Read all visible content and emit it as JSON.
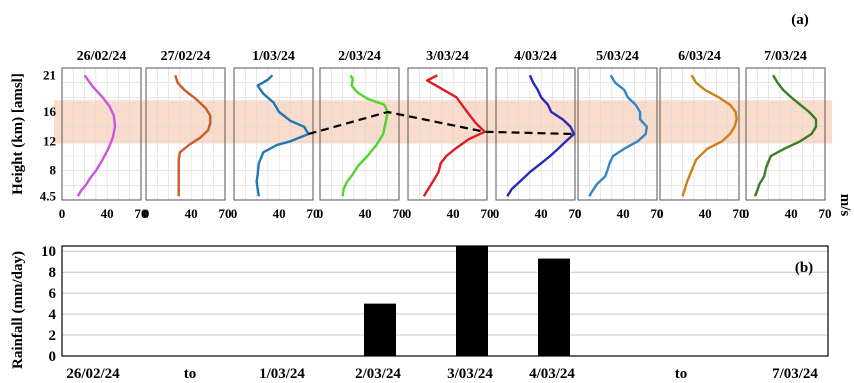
{
  "chart_data": [
    {
      "type": "line",
      "panel_label": "(a)",
      "ylabel": "Height (km) [amsl]",
      "xlabel_unit": "m/s",
      "y_ticks": [
        "4.5",
        "8",
        "12",
        "16",
        "21"
      ],
      "y_tick_values": [
        4.5,
        8,
        12,
        16,
        21
      ],
      "ylim": [
        4,
        22
      ],
      "highlight_band_km": [
        11.7,
        17.6
      ],
      "colors": {
        "highlight": "#f9dccb",
        "axis_jet": "#000000",
        "trend_line": "#000000"
      },
      "panels": [
        {
          "date": "26/02/24",
          "x_ticks": [
            "0",
            "40",
            "70"
          ],
          "x_tick_values": [
            0,
            40,
            70
          ],
          "color": "#cc55e0",
          "profile": [
            [
              14,
              4.5
            ],
            [
              17,
              5.3
            ],
            [
              21,
              6
            ],
            [
              25,
              7
            ],
            [
              30,
              8
            ],
            [
              36,
              9.5
            ],
            [
              41,
              11
            ],
            [
              45,
              12.5
            ],
            [
              47,
              14
            ],
            [
              46,
              15.5
            ],
            [
              42,
              16.8
            ],
            [
              36,
              18
            ],
            [
              27,
              19.5
            ],
            [
              20,
              21
            ]
          ]
        },
        {
          "date": "27/02/24",
          "x_ticks": [
            "0",
            "40",
            "70"
          ],
          "x_tick_values": [
            0,
            40,
            70
          ],
          "color": "#cc5d2a",
          "profile": [
            [
              29,
              4.5
            ],
            [
              29,
              6
            ],
            [
              29,
              8
            ],
            [
              29,
              9.5
            ],
            [
              30,
              10.5
            ],
            [
              38,
              11.5
            ],
            [
              48,
              12.5
            ],
            [
              55,
              13.5
            ],
            [
              57,
              14.5
            ],
            [
              57,
              15.5
            ],
            [
              53,
              16.5
            ],
            [
              44,
              17.8
            ],
            [
              34,
              19
            ],
            [
              28,
              20
            ],
            [
              26,
              21
            ]
          ]
        },
        {
          "date": "1/03/24",
          "x_ticks": [
            "0",
            "40",
            "70"
          ],
          "x_tick_values": [
            0,
            40,
            70
          ],
          "color": "#1f77b4",
          "profile": [
            [
              22,
              4.5
            ],
            [
              21,
              5.5
            ],
            [
              20,
              6.5
            ],
            [
              21,
              7.5
            ],
            [
              22,
              9
            ],
            [
              26,
              10.5
            ],
            [
              38,
              11.5
            ],
            [
              50,
              12
            ],
            [
              66,
              13
            ],
            [
              62,
              14
            ],
            [
              50,
              14.8
            ],
            [
              40,
              16
            ],
            [
              35,
              17.3
            ],
            [
              26,
              18.5
            ],
            [
              21,
              19.6
            ],
            [
              30,
              20.4
            ],
            [
              34,
              21
            ]
          ]
        },
        {
          "date": "2/03/24",
          "x_ticks": [
            "0",
            "40",
            "70"
          ],
          "x_tick_values": [
            0,
            40,
            70
          ],
          "color": "#4fd62a",
          "profile": [
            [
              20,
              4.5
            ],
            [
              21,
              5.5
            ],
            [
              24,
              6.5
            ],
            [
              29,
              7.5
            ],
            [
              34,
              8.7
            ],
            [
              42,
              10
            ],
            [
              50,
              11.5
            ],
            [
              56,
              13
            ],
            [
              58,
              14.5
            ],
            [
              60,
              16
            ],
            [
              57,
              17
            ],
            [
              42,
              17.8
            ],
            [
              33,
              18.7
            ],
            [
              28,
              19.6
            ],
            [
              29,
              20.5
            ],
            [
              27,
              21
            ]
          ]
        },
        {
          "date": "3/03/24",
          "x_ticks": [
            "0",
            "40",
            "70"
          ],
          "x_tick_values": [
            0,
            40,
            70
          ],
          "color": "#e01b24",
          "profile": [
            [
              14,
              4.5
            ],
            [
              18,
              5.5
            ],
            [
              22,
              6.5
            ],
            [
              27,
              7.8
            ],
            [
              29,
              9
            ],
            [
              34,
              10
            ],
            [
              42,
              11
            ],
            [
              54,
              12.3
            ],
            [
              68,
              13.3
            ],
            [
              60,
              14.5
            ],
            [
              51,
              16.3
            ],
            [
              43,
              18
            ],
            [
              26,
              19.5
            ],
            [
              17,
              20.3
            ],
            [
              26,
              21
            ]
          ]
        },
        {
          "date": "4/03/24",
          "x_ticks": [
            "0",
            "40",
            "70"
          ],
          "x_tick_values": [
            0,
            40,
            70
          ],
          "color": "#2a2ab8",
          "profile": [
            [
              10,
              4.5
            ],
            [
              14,
              5.5
            ],
            [
              21,
              6.5
            ],
            [
              30,
              7.8
            ],
            [
              40,
              9
            ],
            [
              48,
              10
            ],
            [
              55,
              11
            ],
            [
              62,
              12
            ],
            [
              69,
              13
            ],
            [
              66,
              14
            ],
            [
              59,
              15
            ],
            [
              49,
              16
            ],
            [
              46,
              17
            ],
            [
              40,
              18
            ],
            [
              37,
              19
            ],
            [
              33,
              20
            ],
            [
              30,
              21
            ]
          ]
        },
        {
          "date": "5/03/24",
          "x_ticks": [
            "0",
            "40",
            "70"
          ],
          "x_tick_values": [
            0,
            40,
            70
          ],
          "color": "#2f86c8",
          "profile": [
            [
              10,
              4.5
            ],
            [
              13,
              5.3
            ],
            [
              17,
              6.2
            ],
            [
              24,
              7.2
            ],
            [
              26,
              8
            ],
            [
              28,
              9
            ],
            [
              31,
              10
            ],
            [
              41,
              11
            ],
            [
              53,
              12
            ],
            [
              60,
              13
            ],
            [
              61,
              14
            ],
            [
              55,
              15
            ],
            [
              55,
              16
            ],
            [
              51,
              17
            ],
            [
              44,
              18
            ],
            [
              41,
              19
            ],
            [
              33,
              20
            ],
            [
              29,
              21
            ]
          ]
        },
        {
          "date": "6/03/24",
          "x_ticks": [
            "0",
            "40",
            "70"
          ],
          "x_tick_values": [
            0,
            40,
            70
          ],
          "color": "#c98218",
          "profile": [
            [
              20,
              4.5
            ],
            [
              22,
              5.5
            ],
            [
              24,
              6.5
            ],
            [
              28,
              8
            ],
            [
              32,
              9.5
            ],
            [
              42,
              11
            ],
            [
              55,
              12
            ],
            [
              62,
              13
            ],
            [
              66,
              14
            ],
            [
              68,
              15
            ],
            [
              67,
              16
            ],
            [
              62,
              17
            ],
            [
              52,
              18
            ],
            [
              40,
              19
            ],
            [
              32,
              20
            ],
            [
              28,
              21
            ]
          ]
        },
        {
          "date": "7/03/24",
          "x_ticks": [
            "0",
            "40",
            "70"
          ],
          "x_tick_values": [
            0,
            40,
            70
          ],
          "color": "#3b7d23",
          "profile": [
            [
              8,
              4.5
            ],
            [
              10,
              5.3
            ],
            [
              12,
              6.2
            ],
            [
              16,
              7.2
            ],
            [
              18,
              8.5
            ],
            [
              22,
              10
            ],
            [
              34,
              11
            ],
            [
              48,
              12
            ],
            [
              58,
              13
            ],
            [
              62,
              14
            ],
            [
              62,
              15
            ],
            [
              56,
              16
            ],
            [
              48,
              17
            ],
            [
              40,
              18
            ],
            [
              33,
              19
            ],
            [
              28,
              20
            ],
            [
              24,
              21
            ]
          ]
        }
      ],
      "trend_points": [
        {
          "panel": 2,
          "x": 66,
          "y": 13
        },
        {
          "panel": 3,
          "x": 60,
          "y": 16
        },
        {
          "panel": 4,
          "x": 68,
          "y": 13.3
        },
        {
          "panel": 5,
          "x": 69,
          "y": 13
        }
      ]
    },
    {
      "type": "bar",
      "panel_label": "(b)",
      "ylabel": "Rainfall (mm/day)",
      "y_ticks": [
        "0",
        "2",
        "4",
        "6",
        "8",
        "10"
      ],
      "y_tick_values": [
        0,
        2,
        4,
        6,
        8,
        10
      ],
      "ylim": [
        0,
        10.5
      ],
      "categories": [
        "26/02/24",
        "to",
        "1/03/24",
        "2/03/24",
        "3/03/24",
        "4/03/24",
        "",
        "to",
        "7/03/24"
      ],
      "values": [
        0,
        0,
        0,
        5,
        11,
        9.3,
        0,
        0,
        0
      ],
      "bar_color": "#000000",
      "grid": true
    }
  ]
}
